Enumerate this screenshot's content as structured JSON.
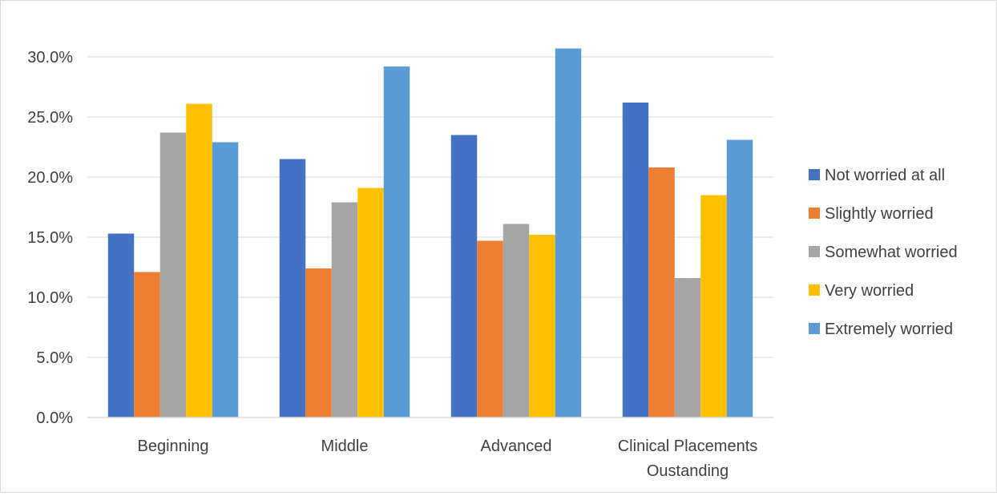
{
  "chart_data": {
    "type": "bar",
    "title": "",
    "xlabel": "",
    "ylabel": "",
    "categories": [
      [
        "Beginning"
      ],
      [
        "Middle"
      ],
      [
        "Advanced"
      ],
      [
        "Clinical Placements",
        "Oustanding"
      ]
    ],
    "series": [
      {
        "name": "Not worried at all",
        "color": "#4472C4",
        "values": [
          15.3,
          21.5,
          23.5,
          26.2
        ]
      },
      {
        "name": "Slightly worried",
        "color": "#ED7D31",
        "values": [
          12.1,
          12.4,
          14.7,
          20.8
        ]
      },
      {
        "name": "Somewhat worried",
        "color": "#A5A5A5",
        "values": [
          23.7,
          17.9,
          16.1,
          11.6
        ]
      },
      {
        "name": "Very worried",
        "color": "#FFC000",
        "values": [
          26.1,
          19.1,
          15.2,
          18.5
        ]
      },
      {
        "name": "Extremely worried",
        "color": "#5B9BD5",
        "values": [
          22.9,
          29.2,
          30.7,
          23.1
        ]
      }
    ],
    "ylim": [
      0,
      30
    ],
    "yticks": [
      "0.0%",
      "5.0%",
      "10.0%",
      "15.0%",
      "20.0%",
      "25.0%",
      "30.0%"
    ],
    "grid": true,
    "legend_position": "right"
  }
}
